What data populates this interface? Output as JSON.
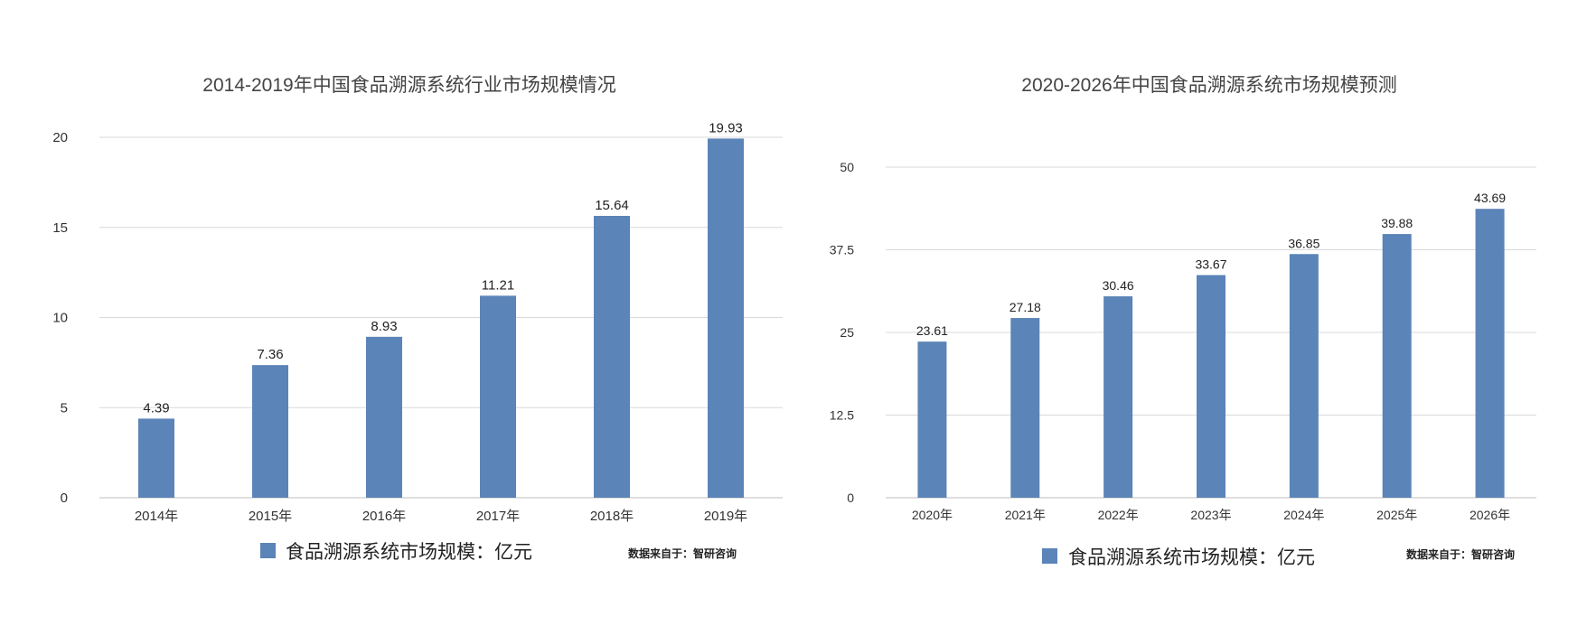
{
  "colors": {
    "bar": "#5b84b8",
    "grid": "#d9d9d9",
    "axis": "#bfbfbf",
    "title": "#444444",
    "tick": "#333333",
    "label": "#222222",
    "background": "#ffffff"
  },
  "chart_data": [
    {
      "type": "bar",
      "title": "2014-2019年中国食品溯源系统行业市场规模情况",
      "categories": [
        "2014年",
        "2015年",
        "2016年",
        "2017年",
        "2018年",
        "2019年"
      ],
      "values": [
        4.39,
        7.36,
        8.93,
        11.21,
        15.64,
        19.93
      ],
      "value_labels": [
        "4.39",
        "7.36",
        "8.93",
        "11.21",
        "15.64",
        "19.93"
      ],
      "yticks": [
        "0",
        "5",
        "10",
        "15",
        "20"
      ],
      "ytick_values": [
        0,
        5,
        10,
        15,
        20
      ],
      "ylim": [
        0,
        20
      ],
      "grid": true,
      "legend": "食品溯源系统市场规模：亿元",
      "legend_position": "bottom",
      "source": "数据来自于：智研咨询"
    },
    {
      "type": "bar",
      "title": "2020-2026年中国食品溯源系统市场规模预测",
      "categories": [
        "2020年",
        "2021年",
        "2022年",
        "2023年",
        "2024年",
        "2025年",
        "2026年"
      ],
      "values": [
        23.61,
        27.18,
        30.46,
        33.67,
        36.85,
        39.88,
        43.69
      ],
      "value_labels": [
        "23.61",
        "27.18",
        "30.46",
        "33.67",
        "36.85",
        "39.88",
        "43.69"
      ],
      "yticks": [
        "0",
        "12.5",
        "25",
        "37.5",
        "50"
      ],
      "ytick_values": [
        0,
        12.5,
        25,
        37.5,
        50
      ],
      "ylim": [
        0,
        50
      ],
      "grid": true,
      "legend": "食品溯源系统市场规模：亿元",
      "legend_position": "bottom",
      "source": "数据来自于：智研咨询"
    }
  ]
}
